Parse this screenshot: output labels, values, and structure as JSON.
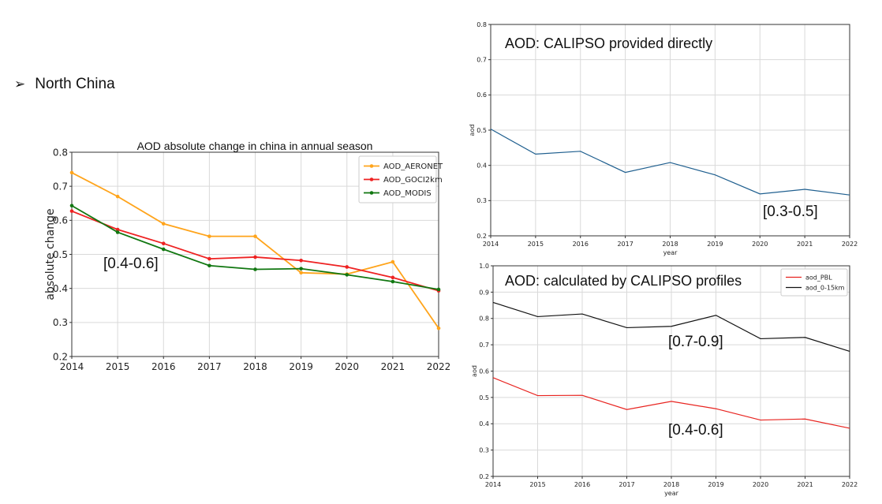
{
  "slide": {
    "bullet_symbol": "➢",
    "bullet_text": "North China",
    "annotation_left": "[0.4-0.6]",
    "annotation_top_right": "[0.3-0.5]",
    "annotation_bottom_right_upper": "[0.7-0.9]",
    "annotation_bottom_right_lower": "[0.4-0.6]"
  },
  "chart_data": [
    {
      "type": "line",
      "title": "AOD absolute change in china in annual season",
      "xlabel": "",
      "ylabel": "absolute change",
      "x": [
        2014,
        2015,
        2016,
        2017,
        2018,
        2019,
        2020,
        2021,
        2022
      ],
      "ylim": [
        0.2,
        0.8
      ],
      "yticks": [
        "0.2",
        "0.3",
        "0.4",
        "0.5",
        "0.6",
        "0.7",
        "0.8"
      ],
      "grid": true,
      "legend_position": "top-right",
      "series": [
        {
          "name": "AOD_AERONET",
          "color": "#ffa41b",
          "values": [
            0.74,
            0.67,
            0.59,
            0.553,
            0.553,
            0.446,
            0.442,
            0.478,
            0.283
          ]
        },
        {
          "name": "AOD_GOCI2km",
          "color": "#ee2222",
          "values": [
            0.627,
            0.573,
            0.532,
            0.487,
            0.492,
            0.482,
            0.463,
            0.432,
            0.393
          ]
        },
        {
          "name": "AOD_MODIS",
          "color": "#117711",
          "values": [
            0.643,
            0.565,
            0.515,
            0.467,
            0.456,
            0.458,
            0.44,
            0.42,
            0.397
          ]
        }
      ]
    },
    {
      "type": "line",
      "title": "AOD: CALIPSO provided directly",
      "xlabel": "year",
      "ylabel": "aod",
      "x": [
        2014,
        2015,
        2016,
        2017,
        2018,
        2019,
        2020,
        2021,
        2022
      ],
      "ylim": [
        0.2,
        0.8
      ],
      "yticks": [
        "0.2",
        "0.3",
        "0.4",
        "0.5",
        "0.6",
        "0.7",
        "0.8"
      ],
      "grid": true,
      "series": [
        {
          "color": "#1f5f8f",
          "values": [
            0.503,
            0.432,
            0.44,
            0.38,
            0.408,
            0.373,
            0.319,
            0.332,
            0.316
          ]
        }
      ]
    },
    {
      "type": "line",
      "title": "AOD: calculated by CALIPSO profiles",
      "xlabel": "year",
      "ylabel": "aod",
      "x": [
        2014,
        2015,
        2016,
        2017,
        2018,
        2019,
        2020,
        2021,
        2022
      ],
      "ylim": [
        0.2,
        1.0
      ],
      "yticks": [
        "0.2",
        "0.3",
        "0.4",
        "0.5",
        "0.6",
        "0.7",
        "0.8",
        "0.9",
        "1.0"
      ],
      "grid": true,
      "legend_position": "top-right",
      "series": [
        {
          "name": "aod_PBL",
          "color": "#e8231f",
          "values": [
            0.575,
            0.507,
            0.508,
            0.454,
            0.485,
            0.457,
            0.414,
            0.418,
            0.383
          ]
        },
        {
          "name": "aod_0-15km",
          "color": "#111111",
          "values": [
            0.861,
            0.807,
            0.817,
            0.765,
            0.77,
            0.812,
            0.723,
            0.728,
            0.675
          ]
        }
      ]
    }
  ]
}
